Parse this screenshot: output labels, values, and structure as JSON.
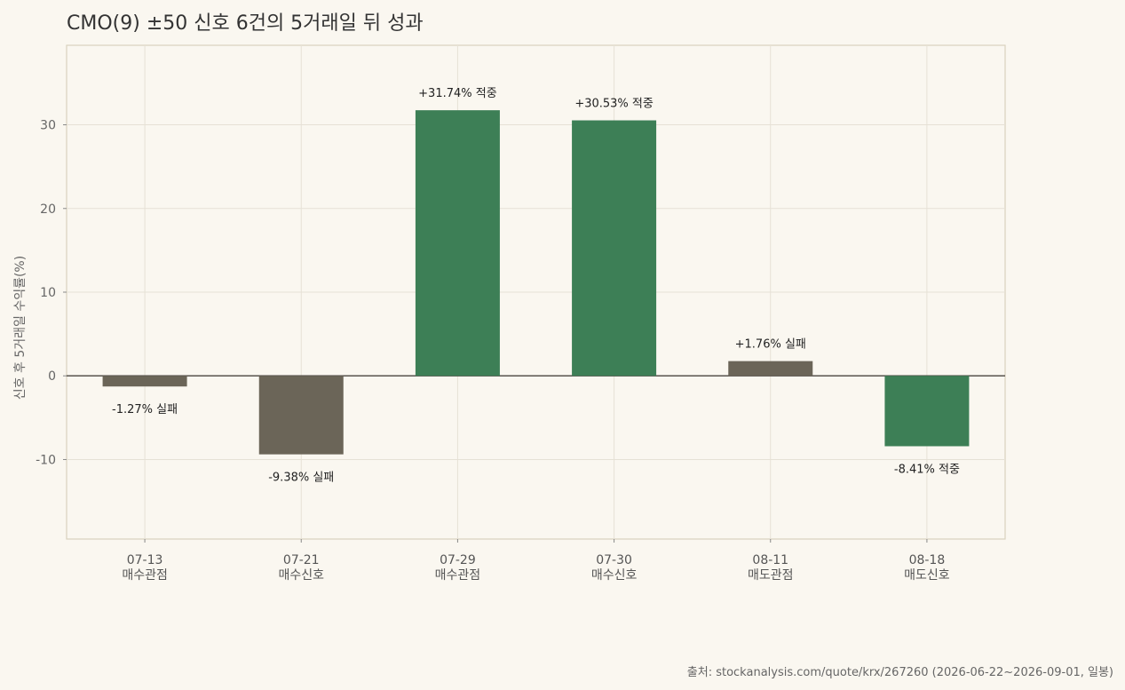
{
  "chart_data": {
    "type": "bar",
    "title": "CMO(9) ±50 신호 6건의 5거래일 뒤 성과",
    "ylabel": "신호 후 5거래일 수익률(%)",
    "xlabel": "",
    "ylim": [
      -19.5,
      39.5
    ],
    "yticks": [
      -10,
      0,
      10,
      20,
      30
    ],
    "grid": true,
    "categories": [
      {
        "date": "07-13",
        "kind": "매수관점"
      },
      {
        "date": "07-21",
        "kind": "매수신호"
      },
      {
        "date": "07-29",
        "kind": "매수관점"
      },
      {
        "date": "07-30",
        "kind": "매수신호"
      },
      {
        "date": "08-11",
        "kind": "매도관점"
      },
      {
        "date": "08-18",
        "kind": "매도신호"
      }
    ],
    "values": [
      -1.27,
      -9.38,
      31.74,
      30.53,
      1.76,
      -8.41
    ],
    "labels": [
      "-1.27% 실패",
      "-9.38% 실패",
      "+31.74% 적중",
      "+30.53% 적중",
      "+1.76% 실패",
      "-8.41% 적중"
    ],
    "outcome": [
      "실패",
      "실패",
      "적중",
      "적중",
      "실패",
      "적중"
    ],
    "colors": {
      "적중": "#3d7f56",
      "실패": "#6b6558"
    }
  },
  "source": "출처: stockanalysis.com/quote/krx/267260 (2026-06-22~2026-09-01, 일봉)"
}
